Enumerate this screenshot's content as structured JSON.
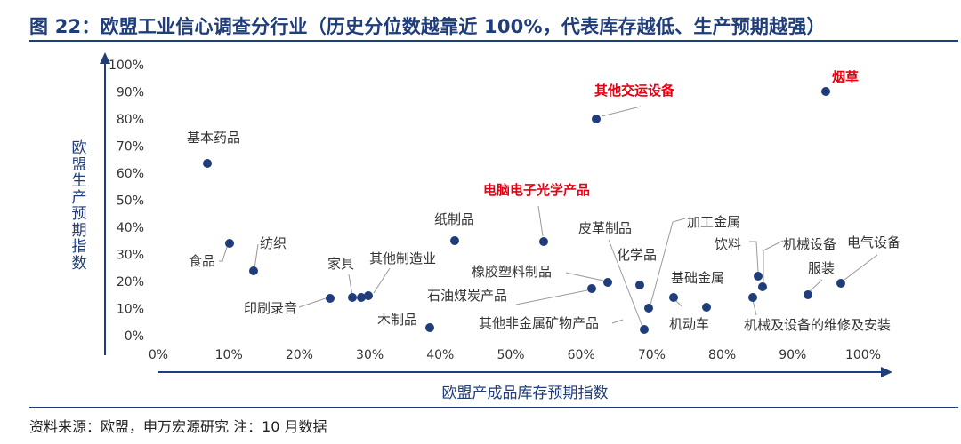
{
  "header": {
    "title": "图 22：欧盟工业信心调查分行业（历史分位数越靠近 100%，代表库存越低、生产预期越强）"
  },
  "footer": {
    "source": "资料来源：欧盟，申万宏源研究   注：10 月数据"
  },
  "colors": {
    "axis": "#1f3d7a",
    "point": "#1f3d7a",
    "highlight": "#e60012",
    "label": "#333333",
    "leader": "#999999"
  },
  "chart_data": {
    "type": "scatter",
    "title": "",
    "xlabel": "欧盟产成品库存预期指数",
    "ylabel": "欧盟生产预期指数",
    "xlim": [
      0,
      1
    ],
    "ylim": [
      0,
      1
    ],
    "xticks": [
      "0%",
      "10%",
      "20%",
      "30%",
      "40%",
      "50%",
      "60%",
      "70%",
      "80%",
      "90%",
      "100%"
    ],
    "yticks": [
      "0%",
      "10%",
      "20%",
      "30%",
      "40%",
      "50%",
      "60%",
      "70%",
      "80%",
      "90%",
      "100%"
    ],
    "grid": false,
    "points": [
      {
        "label": "基本药品",
        "x": 0.07,
        "y": 0.635,
        "highlight": false
      },
      {
        "label": "食品",
        "x": 0.1,
        "y": 0.34,
        "highlight": false
      },
      {
        "label": "纺织",
        "x": 0.135,
        "y": 0.245,
        "highlight": false
      },
      {
        "label": "印刷录音",
        "x": 0.245,
        "y": 0.14,
        "highlight": false
      },
      {
        "label": "家具",
        "x": 0.28,
        "y": 0.145,
        "highlight": false
      },
      {
        "label": "",
        "x": 0.29,
        "y": 0.145,
        "highlight": false
      },
      {
        "label": "其他制造业",
        "x": 0.3,
        "y": 0.15,
        "highlight": false
      },
      {
        "label": "木制品",
        "x": 0.385,
        "y": 0.03,
        "highlight": false
      },
      {
        "label": "纸制品",
        "x": 0.425,
        "y": 0.35,
        "highlight": false
      },
      {
        "label": "电脑电子光学产品",
        "x": 0.545,
        "y": 0.35,
        "highlight": false
      },
      {
        "label": "其他交运设备",
        "x": 0.62,
        "y": 0.8,
        "highlight": false
      },
      {
        "label": "石油煤炭产品",
        "x": 0.615,
        "y": 0.17,
        "highlight": false
      },
      {
        "label": "橡胶塑料制品",
        "x": 0.635,
        "y": 0.2,
        "highlight": false
      },
      {
        "label": "其他非金属矿物产品",
        "x": 0.685,
        "y": 0.02,
        "highlight": false
      },
      {
        "label": "皮革制品",
        "x": 0.68,
        "y": 0.19,
        "highlight": false
      },
      {
        "label": "化学品",
        "x": 0.695,
        "y": 0.1,
        "highlight": false
      },
      {
        "label": "加工金属",
        "x": 0.73,
        "y": 0.145,
        "highlight": false
      },
      {
        "label": "基础金属",
        "x": 0.775,
        "y": 0.105,
        "highlight": false
      },
      {
        "label": "机动车",
        "x": 0.845,
        "y": 0.22,
        "highlight": false
      },
      {
        "label": "饮料",
        "x": 0.85,
        "y": 0.18,
        "highlight": false
      },
      {
        "label": "机械设备",
        "x": 0.84,
        "y": 0.14,
        "highlight": false
      },
      {
        "label": "机械及设备的维修及安装",
        "x": 0.915,
        "y": 0.15,
        "highlight": false
      },
      {
        "label": "服装",
        "x": 0.96,
        "y": 0.195,
        "highlight": false
      },
      {
        "label": "电气设备",
        "x": 0.945,
        "y": 0.905,
        "highlight": true
      }
    ],
    "emphasized_labels": [
      "其他交运设备",
      "电脑电子光学产品",
      "烟草"
    ],
    "extra_labels": [
      "烟草"
    ]
  }
}
